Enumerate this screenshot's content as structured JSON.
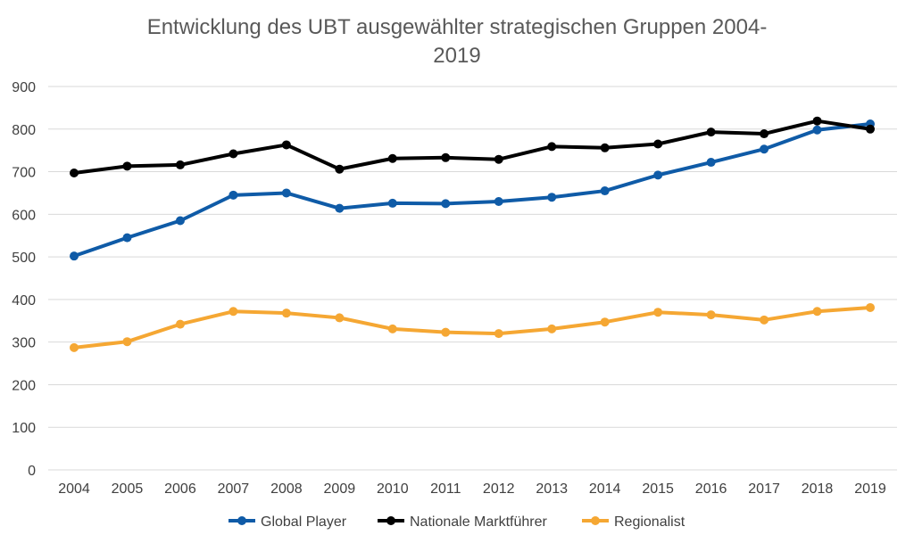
{
  "chart_data": {
    "type": "line",
    "title_line1": "Entwicklung des UBT ausgewählter strategischen Gruppen 2004-",
    "title_line2": "2019",
    "xlabel": "",
    "ylabel": "",
    "ylim": [
      0,
      900
    ],
    "yticks": [
      "0",
      "100",
      "200",
      "300",
      "400",
      "500",
      "600",
      "700",
      "800",
      "900"
    ],
    "grid": true,
    "legend_position": "bottom",
    "categories": [
      "2004",
      "2005",
      "2006",
      "2007",
      "2008",
      "2009",
      "2010",
      "2011",
      "2012",
      "2013",
      "2014",
      "2015",
      "2016",
      "2017",
      "2018",
      "2019"
    ],
    "series": [
      {
        "name": "Global Player",
        "color": "#0f5ba7",
        "values": [
          502,
          545,
          585,
          645,
          650,
          614,
          626,
          625,
          630,
          640,
          655,
          692,
          722,
          753,
          798,
          812
        ]
      },
      {
        "name": "Nationale Marktführer",
        "color": "#000000",
        "values": [
          697,
          713,
          716,
          742,
          763,
          706,
          731,
          733,
          729,
          759,
          756,
          765,
          793,
          789,
          819,
          800
        ]
      },
      {
        "name": "Regionalist",
        "color": "#f5a733",
        "values": [
          287,
          301,
          342,
          372,
          368,
          357,
          331,
          323,
          320,
          331,
          347,
          370,
          364,
          352,
          372,
          381
        ]
      }
    ]
  }
}
